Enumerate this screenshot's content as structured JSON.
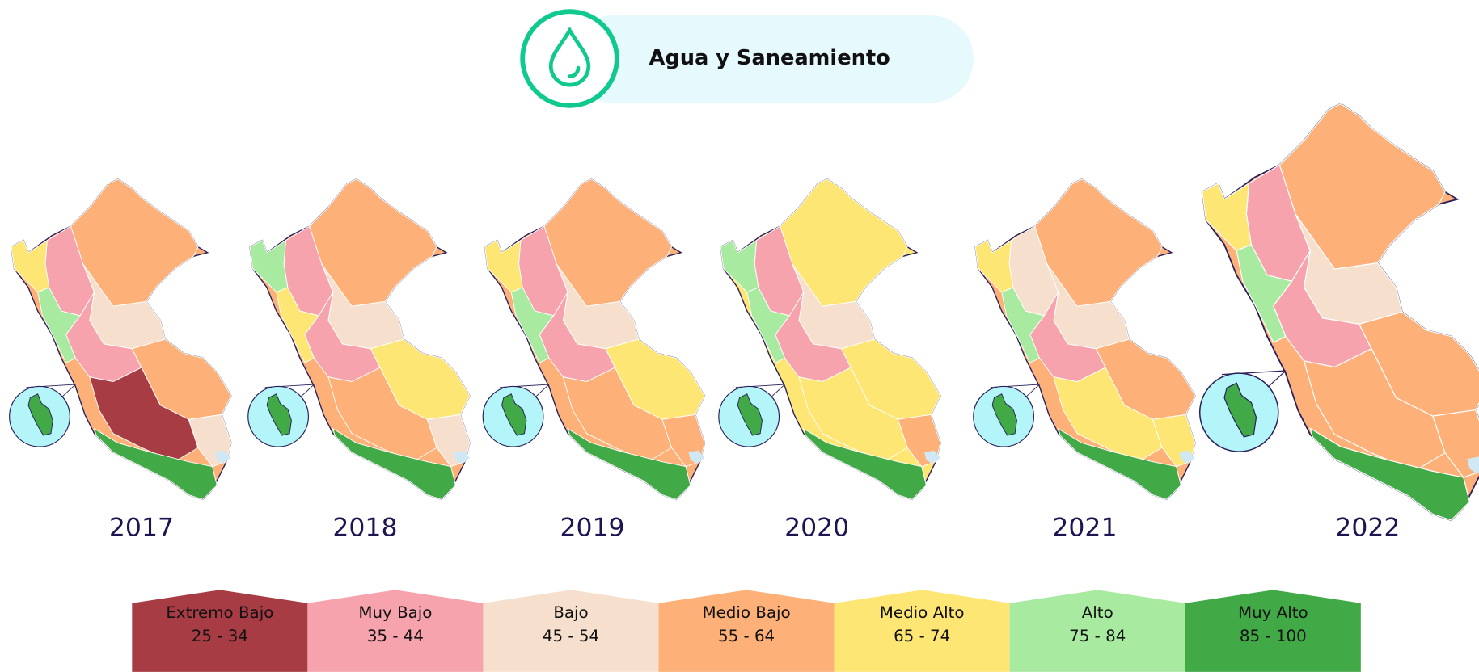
{
  "header": {
    "title": "Agua y Saneamiento"
  },
  "maps": [
    {
      "year": "2017"
    },
    {
      "year": "2018"
    },
    {
      "year": "2019"
    },
    {
      "year": "2020"
    },
    {
      "year": "2021"
    },
    {
      "year": "2022"
    }
  ],
  "legend": [
    {
      "label": "Extremo Bajo",
      "range": "25 - 34",
      "color": "#a83c45"
    },
    {
      "label": "Muy Bajo",
      "range": "35 - 44",
      "color": "#f6a3ae"
    },
    {
      "label": "Bajo",
      "range": "45 - 54",
      "color": "#f6e0cd"
    },
    {
      "label": "Medio Bajo",
      "range": "55 - 64",
      "color": "#fdb077"
    },
    {
      "label": "Medio Alto",
      "range": "65 - 74",
      "color": "#fde674"
    },
    {
      "label": "Alto",
      "range": "75 - 84",
      "color": "#a8eaa0"
    },
    {
      "label": "Muy Alto",
      "range": "85 - 100",
      "color": "#42a947"
    }
  ]
}
